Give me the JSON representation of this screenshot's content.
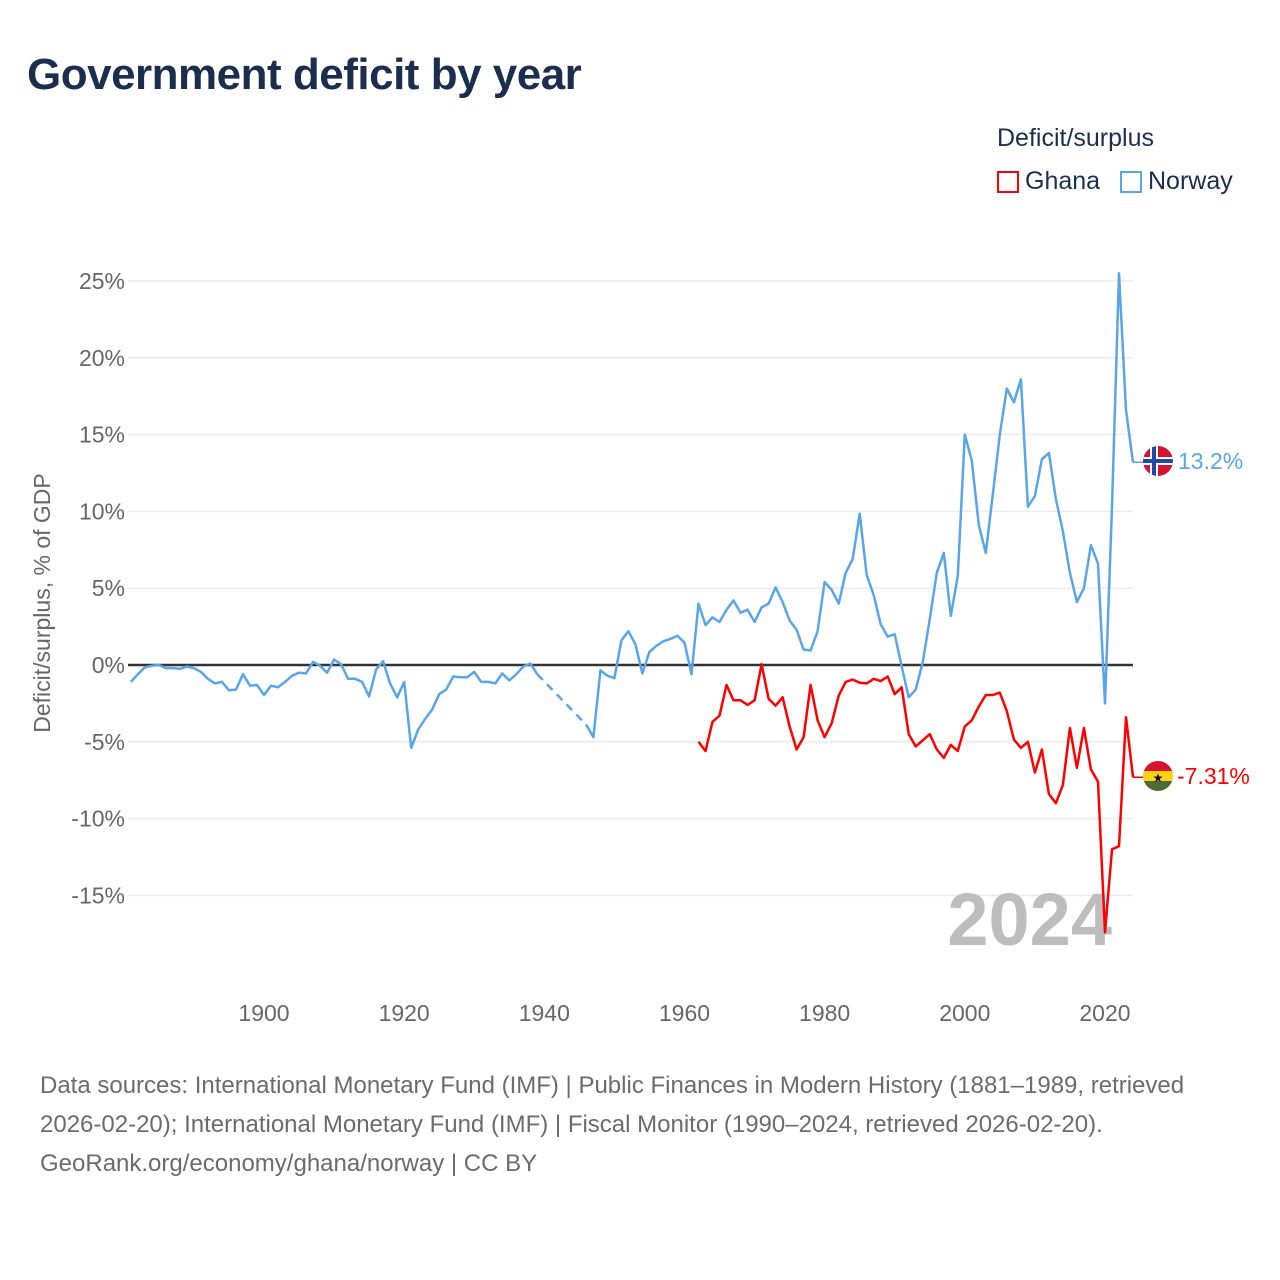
{
  "chart_data": {
    "type": "line",
    "title": "Government deficit by year",
    "ylabel": "Deficit/surplus, % of GDP",
    "xlabel": "",
    "ylim": [
      -17.5,
      25.5
    ],
    "xlim": [
      1881,
      2024
    ],
    "yticks": [
      25,
      20,
      15,
      10,
      5,
      0,
      -5,
      -10,
      -15
    ],
    "ytick_labels": [
      "25%",
      "20%",
      "15%",
      "10%",
      "5%",
      "0%",
      "-5%",
      "-10%",
      "-15%"
    ],
    "xticks": [
      1900,
      1920,
      1940,
      1960,
      1980,
      2000,
      2020
    ],
    "xtick_labels": [
      "1900",
      "1920",
      "1940",
      "1960",
      "1980",
      "2000",
      "2020"
    ],
    "grid": true,
    "legend_title": "Deficit/surplus",
    "legend_position": "top-right",
    "year_watermark": "2024",
    "series": [
      {
        "name": "Norway",
        "color": "#5aa5e8",
        "end_label": "13.2%",
        "start_year": 1881,
        "values": [
          -1.1,
          -0.6,
          -0.15,
          -0.05,
          0.0,
          -0.2,
          -0.2,
          -0.25,
          -0.1,
          -0.2,
          -0.45,
          -0.9,
          -1.2,
          -1.1,
          -1.65,
          -1.6,
          -0.6,
          -1.35,
          -1.3,
          -1.95,
          -1.35,
          -1.45,
          -1.1,
          -0.7,
          -0.5,
          -0.55,
          0.2,
          -0.05,
          -0.5,
          0.35,
          0.05,
          -0.9,
          -0.9,
          -1.1,
          -2.05,
          -0.3,
          0.25,
          -1.2,
          -2.1,
          -1.1,
          -5.4,
          -4.2,
          -3.5,
          -2.9,
          -1.9,
          -1.6,
          -0.75,
          -0.8,
          -0.8,
          -0.45,
          -1.1,
          -1.1,
          -1.2,
          -0.55,
          -1.0,
          -0.6,
          -0.1,
          0.1,
          -0.6,
          null,
          null,
          null,
          null,
          null,
          null,
          -3.9,
          -4.7,
          -0.35,
          -0.7,
          -0.85,
          1.6,
          2.2,
          1.35,
          -0.55,
          0.85,
          1.25,
          1.55,
          1.7,
          1.9,
          1.45,
          -0.6,
          4.0,
          2.6,
          3.1,
          2.8,
          3.6,
          4.2,
          3.4,
          3.6,
          2.8,
          3.75,
          4.0,
          5.05,
          4.1,
          2.9,
          2.3,
          1.0,
          0.95,
          2.2,
          5.4,
          4.9,
          4.0,
          6.0,
          6.9,
          9.85,
          5.85,
          4.55,
          2.65,
          1.85,
          2.0,
          -0.1,
          -2.1,
          -1.6,
          0.2,
          3.0,
          6.0,
          7.3,
          3.2,
          5.8,
          15.0,
          13.3,
          9.1,
          7.3,
          11.1,
          15.0,
          18.0,
          17.1,
          18.6,
          10.3,
          11.0,
          13.4,
          13.8,
          10.8,
          8.7,
          6.0,
          4.1,
          5.0,
          7.8,
          6.6,
          -2.5,
          10.3,
          25.5,
          16.6,
          13.2
        ]
      },
      {
        "name": "Ghana",
        "color": "#ff0000",
        "end_label": "-7.31%",
        "start_year": 1962,
        "values": [
          -5.0,
          -5.6,
          -3.7,
          -3.3,
          -1.3,
          -2.3,
          -2.3,
          -2.6,
          -2.3,
          0.05,
          -2.2,
          -2.65,
          -2.1,
          -4.0,
          -5.5,
          -4.7,
          -1.3,
          -3.6,
          -4.7,
          -3.8,
          -2.0,
          -1.1,
          -0.95,
          -1.15,
          -1.2,
          -0.9,
          -1.05,
          -0.75,
          -1.9,
          -1.45,
          -4.5,
          -5.3,
          -4.9,
          -4.5,
          -5.5,
          -6.05,
          -5.2,
          -5.6,
          -4.0,
          -3.6,
          -2.7,
          -1.95,
          -1.95,
          -1.8,
          -3.0,
          -4.85,
          -5.4,
          -5.0,
          -7.0,
          -5.5,
          -8.4,
          -9.0,
          -7.8,
          -4.1,
          -6.7,
          -4.1,
          -6.8,
          -7.6,
          -17.4,
          -12.0,
          -11.8,
          -3.4,
          -7.31
        ]
      }
    ]
  },
  "footer": {
    "sources": "Data sources: International Monetary Fund (IMF) | Public Finances in Modern History (1881–1989, retrieved 2026-02-20); International Monetary Fund (IMF) | Fiscal Monitor (1990–2024, retrieved 2026-02-20).",
    "credit": "GeoRank.org/economy/ghana/norway | CC BY"
  }
}
